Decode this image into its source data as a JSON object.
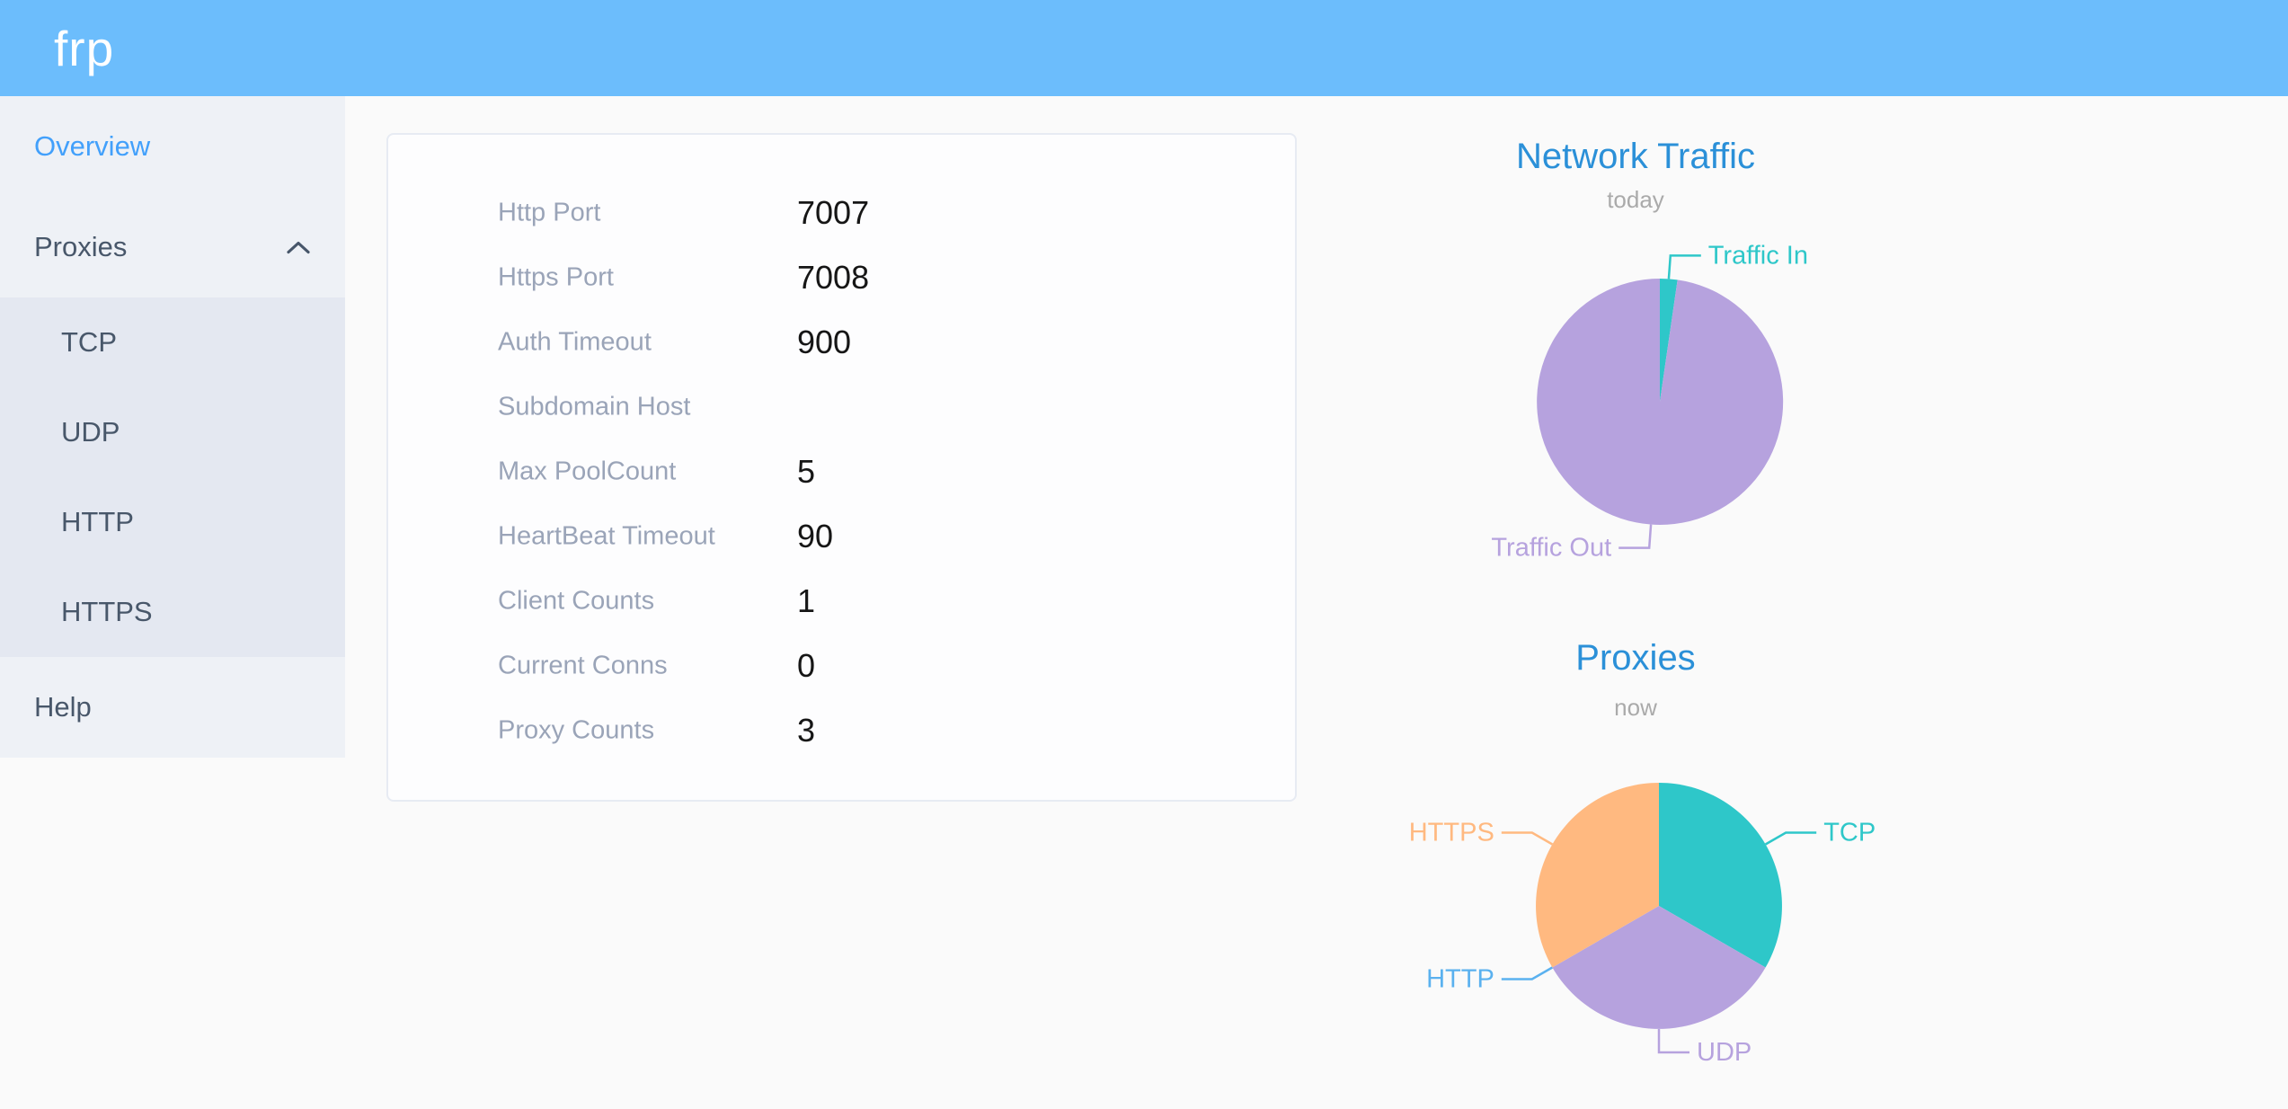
{
  "header": {
    "logo_text": "frp"
  },
  "sidebar": {
    "active_item": "Overview",
    "proxies_expanded": true,
    "items": {
      "overview": "Overview",
      "proxies": "Proxies",
      "help": "Help"
    },
    "proxies_submenu": [
      "TCP",
      "UDP",
      "HTTP",
      "HTTPS"
    ],
    "icons": {
      "proxies": "chevron-up-icon"
    }
  },
  "overview_card": {
    "rows": [
      {
        "label": "Http Port",
        "value": "7007"
      },
      {
        "label": "Https Port",
        "value": "7008"
      },
      {
        "label": "Auth Timeout",
        "value": "900"
      },
      {
        "label": "Subdomain Host",
        "value": ""
      },
      {
        "label": "Max PoolCount",
        "value": "5"
      },
      {
        "label": "HeartBeat Timeout",
        "value": "90"
      },
      {
        "label": "Client Counts",
        "value": "1"
      },
      {
        "label": "Current Conns",
        "value": "0"
      },
      {
        "label": "Proxy Counts",
        "value": "3"
      }
    ]
  },
  "chart_data": [
    {
      "type": "pie",
      "title": "Network Traffic",
      "subtitle": "today",
      "legend_position": "none",
      "value_unit": "percent of pie (estimated from slice angles; absolute byte values not shown on screen)",
      "slices": [
        {
          "label": "Traffic In",
          "value": 2.3,
          "color": "#2ec7c9"
        },
        {
          "label": "Traffic Out",
          "value": 97.7,
          "color": "#b6a2de"
        }
      ]
    },
    {
      "type": "pie",
      "title": "Proxies",
      "subtitle": "now",
      "legend_position": "none",
      "value_unit": "proxy count",
      "slices": [
        {
          "label": "TCP",
          "value": 1,
          "color": "#2ec7c9"
        },
        {
          "label": "UDP",
          "value": 1,
          "color": "#b6a2de"
        },
        {
          "label": "HTTP",
          "value": 0,
          "color": "#5ab1ef"
        },
        {
          "label": "HTTPS",
          "value": 1,
          "color": "#ffb980"
        }
      ]
    }
  ],
  "colors": {
    "header_bg": "#6cbdfc",
    "sidebar_bg": "#eef1f6",
    "submenu_bg": "#e4e8f1",
    "menu_text": "#48576a",
    "menu_active": "#42a0fb",
    "chart_title": "#2b90d8",
    "chart_subtitle": "#aaaaaa",
    "card_label": "#9aa4b8",
    "card_value": "#161616",
    "pie_teal": "#2ec7c9",
    "pie_purple": "#b6a2de",
    "pie_blue": "#5ab1ef",
    "pie_orange": "#ffb980"
  }
}
